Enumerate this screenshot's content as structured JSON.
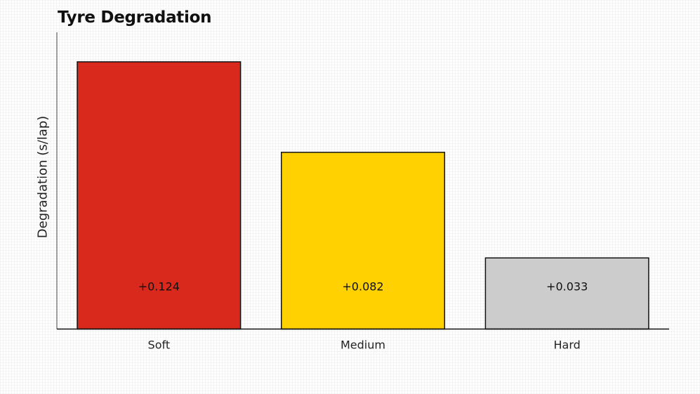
{
  "chart_data": {
    "type": "bar",
    "title": "Tyre Degradation",
    "xlabel": "",
    "ylabel": "Degradation (s/lap)",
    "categories": [
      "Soft",
      "Medium",
      "Hard"
    ],
    "values": [
      0.124,
      0.082,
      0.033
    ],
    "value_labels": [
      "+0.124",
      "+0.082",
      "+0.033"
    ],
    "colors": [
      "#d9291c",
      "#ffd100",
      "#cccccc"
    ],
    "ylim": [
      0,
      0.139
    ],
    "grid": false,
    "legend": "none"
  }
}
